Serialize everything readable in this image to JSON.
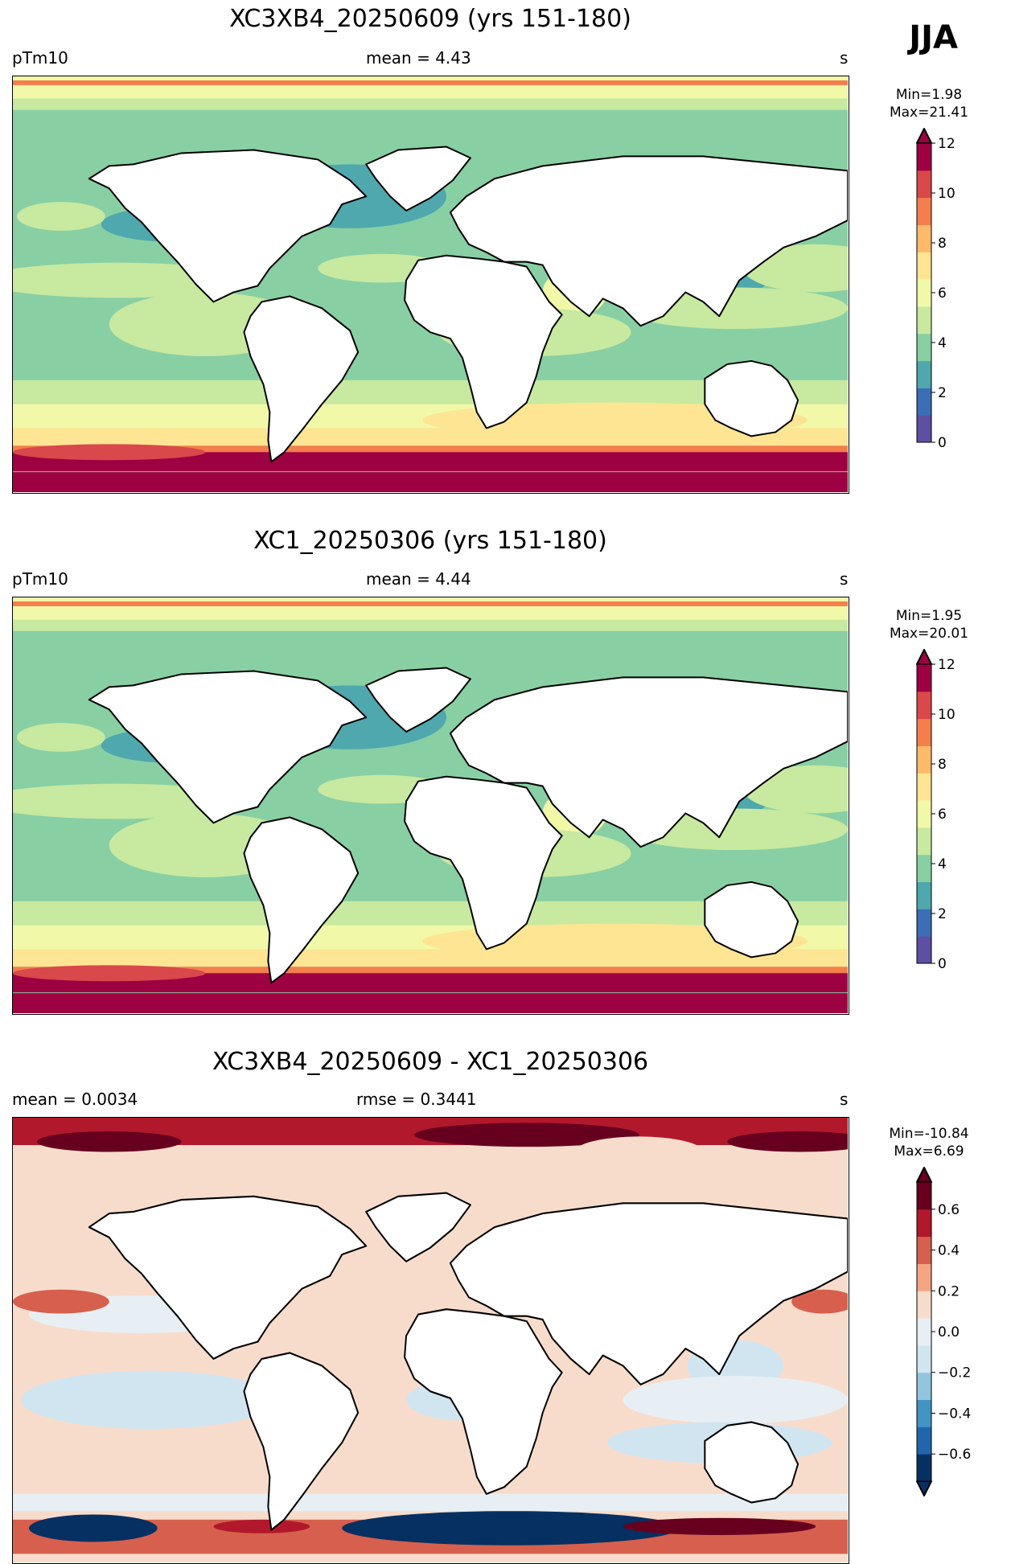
{
  "season": "JJA",
  "panels": [
    {
      "title": "XC3XB4_20250609 (yrs 151-180)",
      "left_label": "pTm10",
      "center_label": "mean = 4.43",
      "right_label": "s",
      "min_label": "Min=1.98",
      "max_label": "Max=21.41",
      "colorbar": {
        "ticks": [
          "0",
          "2",
          "4",
          "6",
          "8",
          "10",
          "12"
        ],
        "extend": "max"
      }
    },
    {
      "title": "XC1_20250306 (yrs 151-180)",
      "left_label": "pTm10",
      "center_label": "mean = 4.44",
      "right_label": "s",
      "min_label": "Min=1.95",
      "max_label": "Max=20.01",
      "colorbar": {
        "ticks": [
          "0",
          "2",
          "4",
          "6",
          "8",
          "10",
          "12"
        ],
        "extend": "max"
      }
    },
    {
      "title": "XC3XB4_20250609 - XC1_20250306",
      "left_label": "mean = 0.0034",
      "center_label": "rmse = 0.3441",
      "right_label": "s",
      "min_label": "Min=-10.84",
      "max_label": "Max=6.69",
      "colorbar": {
        "ticks": [
          "0.6",
          "0.4",
          "0.2",
          "0.0",
          "−0.2",
          "−0.4",
          "−0.6"
        ],
        "extend": "both"
      }
    }
  ],
  "colors": {
    "abs_scale": [
      "#5e4fa2",
      "#3d6db5",
      "#4fa8ad",
      "#88cfa4",
      "#c7e9a0",
      "#f1f9a9",
      "#fee593",
      "#fdba6b",
      "#f47e4c",
      "#d9484a",
      "#9e0142"
    ],
    "diff_scale": [
      "#053061",
      "#2166ac",
      "#4393c3",
      "#92c5de",
      "#d1e5f0",
      "#e8eff4",
      "#f8dccb",
      "#f4a582",
      "#d6604d",
      "#b2182b",
      "#67001f"
    ],
    "land": "#ffffff",
    "coast": "#000000"
  }
}
